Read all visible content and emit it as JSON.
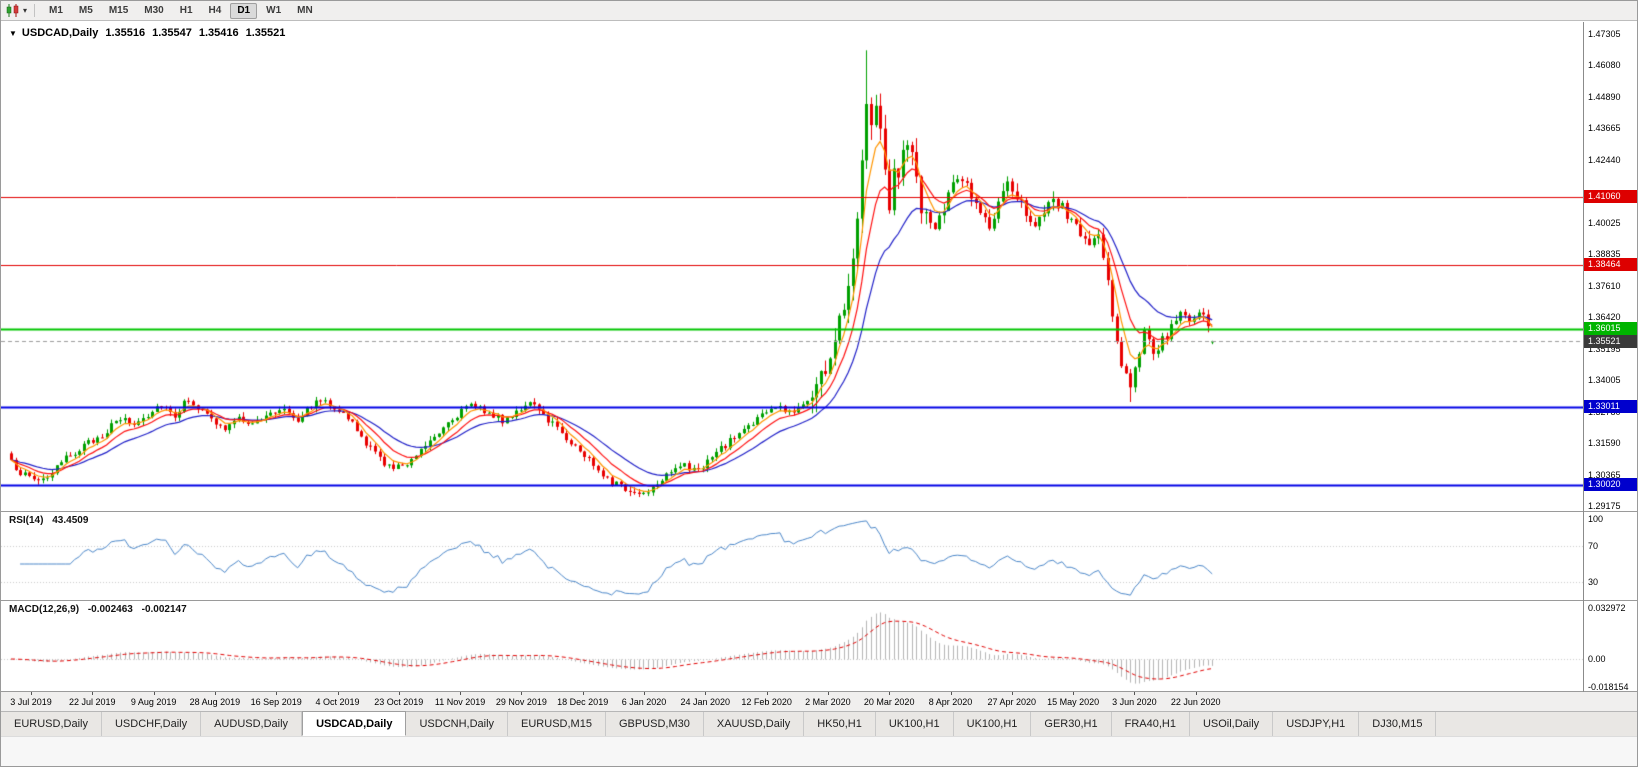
{
  "toolbar": {
    "chart_icon": "candlestick-chart-icon",
    "caret_glyph": "▾",
    "timeframes": [
      "M1",
      "M5",
      "M15",
      "M30",
      "H1",
      "H4",
      "D1",
      "W1",
      "MN"
    ],
    "active_timeframe": "D1"
  },
  "chart": {
    "marker": "▼",
    "symbol": "USDCAD,Daily",
    "open": "1.35516",
    "high": "1.35547",
    "low": "1.35416",
    "close": "1.35521"
  },
  "price_axis": {
    "ticks": [
      "1.47305",
      "1.46080",
      "1.44890",
      "1.43665",
      "1.42440",
      "1.40025",
      "1.38835",
      "1.37610",
      "1.36420",
      "1.35195",
      "1.34005",
      "1.32780",
      "1.31590",
      "1.30365",
      "1.29175"
    ],
    "badges": [
      {
        "value": "1.41060",
        "bg": "#dd0000",
        "kind": "resistance-line-price"
      },
      {
        "value": "1.38464",
        "bg": "#dd0000",
        "kind": "resistance-line-price"
      },
      {
        "value": "1.36015",
        "bg": "#00b400",
        "kind": "support-line-price"
      },
      {
        "value": "1.35521",
        "bg": "#3a3a3a",
        "kind": "current-price"
      },
      {
        "value": "1.33011",
        "bg": "#0000cd",
        "kind": "support-line-price"
      },
      {
        "value": "1.30020",
        "bg": "#0000cd",
        "kind": "support-line-price"
      }
    ]
  },
  "hlines": [
    {
      "price": 1.4106,
      "color": "#e10000",
      "width": 1
    },
    {
      "price": 1.38464,
      "color": "#e10000",
      "width": 1
    },
    {
      "price": 1.36015,
      "color": "#00c400",
      "width": 2
    },
    {
      "price": 1.33011,
      "color": "#0000e6",
      "width": 2
    },
    {
      "price": 1.3002,
      "color": "#0000e6",
      "width": 2
    }
  ],
  "current_price_line": {
    "price": 1.35521,
    "color": "#9b9b9b"
  },
  "rsi": {
    "label": "RSI(14)",
    "value": "43.4509",
    "line_color": "#4a86c8",
    "axis_labels": [
      "100",
      "70",
      "30"
    ],
    "levels": [
      70,
      30
    ]
  },
  "macd": {
    "label": "MACD(12,26,9)",
    "value_main": "-0.002463",
    "value_signal": "-0.002147",
    "histogram_color": "#b4b4b4",
    "signal_color": "#e00000",
    "axis_labels": [
      "0.032972",
      "0.00",
      "-0.018154"
    ]
  },
  "time_axis": {
    "labels": [
      "3 Jul 2019",
      "22 Jul 2019",
      "9 Aug 2019",
      "28 Aug 2019",
      "16 Sep 2019",
      "4 Oct 2019",
      "23 Oct 2019",
      "11 Nov 2019",
      "29 Nov 2019",
      "18 Dec 2019",
      "6 Jan 2020",
      "24 Jan 2020",
      "12 Feb 2020",
      "2 Mar 2020",
      "20 Mar 2020",
      "8 Apr 2020",
      "27 Apr 2020",
      "15 May 2020",
      "3 Jun 2020",
      "22 Jun 2020"
    ]
  },
  "tabs": {
    "items": [
      "EURUSD,Daily",
      "USDCHF,Daily",
      "AUDUSD,Daily",
      "USDCAD,Daily",
      "USDCNH,Daily",
      "EURUSD,M15",
      "GBPUSD,M30",
      "XAUUSD,Daily",
      "HK50,H1",
      "UK100,H1",
      "UK100,H1",
      "GER30,H1",
      "FRA40,H1",
      "USOil,Daily",
      "USDJPY,H1",
      "DJ30,M15"
    ],
    "active_index": 3
  },
  "chart_data": {
    "type": "candlestick",
    "title": "USDCAD,Daily",
    "ylim": [
      1.29175,
      1.47305
    ],
    "x_range_days": 265,
    "bull_color": "#00a000",
    "bear_color": "#e80000",
    "price_anchors": [
      [
        0,
        1.3085
      ],
      [
        3,
        1.3038
      ],
      [
        6,
        1.3022
      ],
      [
        9,
        1.3045
      ],
      [
        13,
        1.312
      ],
      [
        17,
        1.316
      ],
      [
        21,
        1.321
      ],
      [
        24,
        1.3255
      ],
      [
        27,
        1.3235
      ],
      [
        30,
        1.3275
      ],
      [
        33,
        1.3315
      ],
      [
        36,
        1.327
      ],
      [
        39,
        1.3335
      ],
      [
        41,
        1.33
      ],
      [
        44,
        1.325
      ],
      [
        47,
        1.3215
      ],
      [
        50,
        1.3255
      ],
      [
        54,
        1.324
      ],
      [
        57,
        1.3275
      ],
      [
        60,
        1.33
      ],
      [
        63,
        1.3255
      ],
      [
        66,
        1.331
      ],
      [
        69,
        1.333
      ],
      [
        72,
        1.329
      ],
      [
        75,
        1.3235
      ],
      [
        78,
        1.316
      ],
      [
        81,
        1.3105
      ],
      [
        84,
        1.306
      ],
      [
        87,
        1.309
      ],
      [
        90,
        1.314
      ],
      [
        93,
        1.3195
      ],
      [
        96,
        1.3245
      ],
      [
        99,
        1.3285
      ],
      [
        102,
        1.331
      ],
      [
        105,
        1.328
      ],
      [
        108,
        1.3245
      ],
      [
        111,
        1.329
      ],
      [
        114,
        1.331
      ],
      [
        117,
        1.327
      ],
      [
        120,
        1.3225
      ],
      [
        123,
        1.3165
      ],
      [
        126,
        1.3115
      ],
      [
        129,
        1.3065
      ],
      [
        132,
        1.3015
      ],
      [
        135,
        1.2985
      ],
      [
        138,
        1.2968
      ],
      [
        141,
        1.2995
      ],
      [
        144,
        1.305
      ],
      [
        147,
        1.308
      ],
      [
        150,
        1.3055
      ],
      [
        153,
        1.309
      ],
      [
        156,
        1.314
      ],
      [
        159,
        1.3185
      ],
      [
        162,
        1.323
      ],
      [
        165,
        1.327
      ],
      [
        168,
        1.33
      ],
      [
        171,
        1.328
      ],
      [
        174,
        1.331
      ],
      [
        176,
        1.3355
      ],
      [
        178,
        1.342
      ],
      [
        180,
        1.349
      ],
      [
        182,
        1.362
      ],
      [
        184,
        1.378
      ],
      [
        186,
        1.405
      ],
      [
        187,
        1.425
      ],
      [
        188,
        1.45
      ],
      [
        189,
        1.442
      ],
      [
        190,
        1.448
      ],
      [
        191,
        1.434
      ],
      [
        192,
        1.423
      ],
      [
        193,
        1.409
      ],
      [
        194,
        1.422
      ],
      [
        195,
        1.416
      ],
      [
        196,
        1.428
      ],
      [
        197,
        1.434
      ],
      [
        198,
        1.424
      ],
      [
        199,
        1.417
      ],
      [
        200,
        1.409
      ],
      [
        201,
        1.402
      ],
      [
        203,
        1.3975
      ],
      [
        205,
        1.406
      ],
      [
        207,
        1.415
      ],
      [
        209,
        1.419
      ],
      [
        211,
        1.411
      ],
      [
        213,
        1.404
      ],
      [
        215,
        1.399
      ],
      [
        217,
        1.407
      ],
      [
        219,
        1.414
      ],
      [
        221,
        1.412
      ],
      [
        223,
        1.406
      ],
      [
        225,
        1.3995
      ],
      [
        227,
        1.403
      ],
      [
        229,
        1.409
      ],
      [
        231,
        1.406
      ],
      [
        234,
        1.399
      ],
      [
        237,
        1.3915
      ],
      [
        239,
        1.396
      ],
      [
        241,
        1.377
      ],
      [
        242,
        1.366
      ],
      [
        243,
        1.356
      ],
      [
        244,
        1.347
      ],
      [
        245,
        1.342
      ],
      [
        246,
        1.339
      ],
      [
        247,
        1.345
      ],
      [
        248,
        1.352
      ],
      [
        249,
        1.358
      ],
      [
        250,
        1.355
      ],
      [
        251,
        1.3485
      ],
      [
        252,
        1.353
      ],
      [
        253,
        1.356
      ],
      [
        255,
        1.36
      ],
      [
        257,
        1.3655
      ],
      [
        259,
        1.362
      ],
      [
        261,
        1.3675
      ],
      [
        263,
        1.36
      ],
      [
        264,
        1.3552
      ]
    ],
    "volatility_zones": [
      {
        "from": 0,
        "to": 176,
        "v": 0.0032
      },
      {
        "from": 176,
        "to": 202,
        "v": 0.0105
      },
      {
        "from": 202,
        "to": 240,
        "v": 0.006
      },
      {
        "from": 240,
        "to": 265,
        "v": 0.0045
      }
    ],
    "spike_high": {
      "day": 188,
      "price": 1.4668
    },
    "dip_low": {
      "day": 246,
      "price": 1.332
    },
    "last_candle": {
      "open": 1.35516,
      "high": 1.35547,
      "low": 1.35416,
      "close": 1.35521
    },
    "moving_averages": [
      {
        "period": 5,
        "color": "#ff9500"
      },
      {
        "period": 10,
        "color": "#ff1010"
      },
      {
        "period": 20,
        "color": "#2020c8"
      }
    ],
    "indicators": {
      "rsi_period": 14,
      "macd": [
        12,
        26,
        9
      ]
    }
  }
}
